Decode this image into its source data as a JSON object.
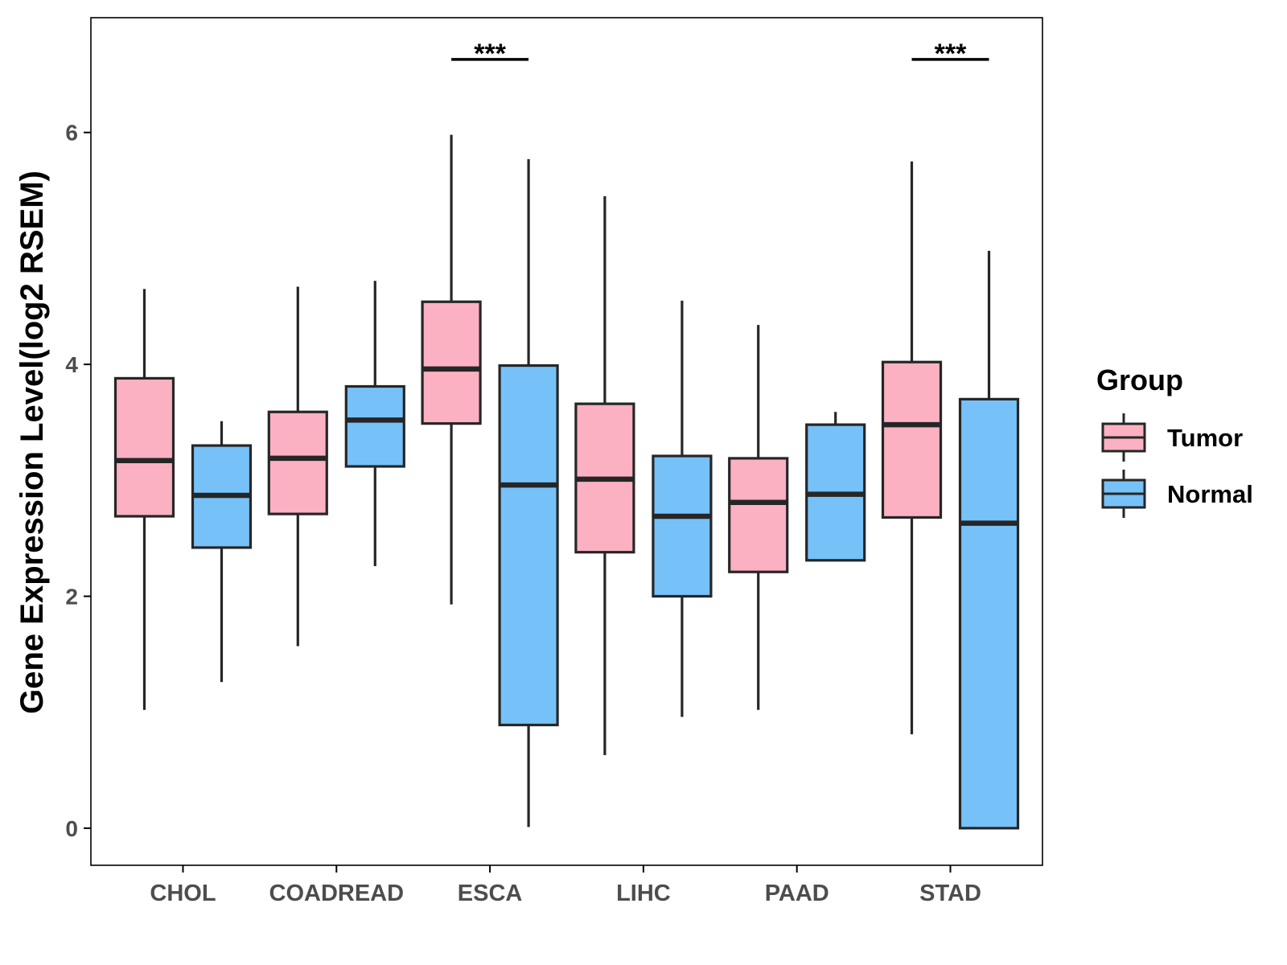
{
  "chart_data": {
    "type": "boxplot",
    "title": "",
    "xlabel": "",
    "ylabel": "Gene Expression Level(log2 RSEM)",
    "ylim": [
      -0.32,
      6.99
    ],
    "y_ticks": [
      0,
      2,
      4,
      6
    ],
    "categories": [
      "CHOL",
      "COADREAD",
      "ESCA",
      "LIHC",
      "PAAD",
      "STAD"
    ],
    "series": [
      {
        "name": "Tumor",
        "color": "#FBB1C2",
        "boxes": [
          {
            "min": 1.02,
            "q1": 2.69,
            "median": 3.17,
            "q3": 3.88,
            "max": 4.65
          },
          {
            "min": 1.57,
            "q1": 2.71,
            "median": 3.19,
            "q3": 3.59,
            "max": 4.67
          },
          {
            "min": 1.93,
            "q1": 3.49,
            "median": 3.96,
            "q3": 4.54,
            "max": 5.98
          },
          {
            "min": 0.63,
            "q1": 2.38,
            "median": 3.01,
            "q3": 3.66,
            "max": 5.45
          },
          {
            "min": 1.02,
            "q1": 2.21,
            "median": 2.81,
            "q3": 3.19,
            "max": 4.34
          },
          {
            "min": 0.81,
            "q1": 2.68,
            "median": 3.48,
            "q3": 4.02,
            "max": 5.75
          }
        ]
      },
      {
        "name": "Normal",
        "color": "#76C1F8",
        "boxes": [
          {
            "min": 1.26,
            "q1": 2.42,
            "median": 2.87,
            "q3": 3.3,
            "max": 3.51
          },
          {
            "min": 2.26,
            "q1": 3.12,
            "median": 3.52,
            "q3": 3.81,
            "max": 4.72
          },
          {
            "min": 0.01,
            "q1": 0.89,
            "median": 2.96,
            "q3": 3.99,
            "max": 5.77
          },
          {
            "min": 0.96,
            "q1": 2.0,
            "median": 2.69,
            "q3": 3.21,
            "max": 4.55
          },
          {
            "min": 2.31,
            "q1": 2.31,
            "median": 2.88,
            "q3": 3.48,
            "max": 3.59
          },
          {
            "min": 0.0,
            "q1": 0.0,
            "median": 2.63,
            "q3": 3.7,
            "max": 4.98
          }
        ]
      }
    ],
    "significance": [
      {
        "category": "ESCA",
        "label": "***",
        "y": 6.63
      },
      {
        "category": "STAD",
        "label": "***",
        "y": 6.63
      }
    ],
    "legend": {
      "title": "Group",
      "position": "right"
    }
  }
}
